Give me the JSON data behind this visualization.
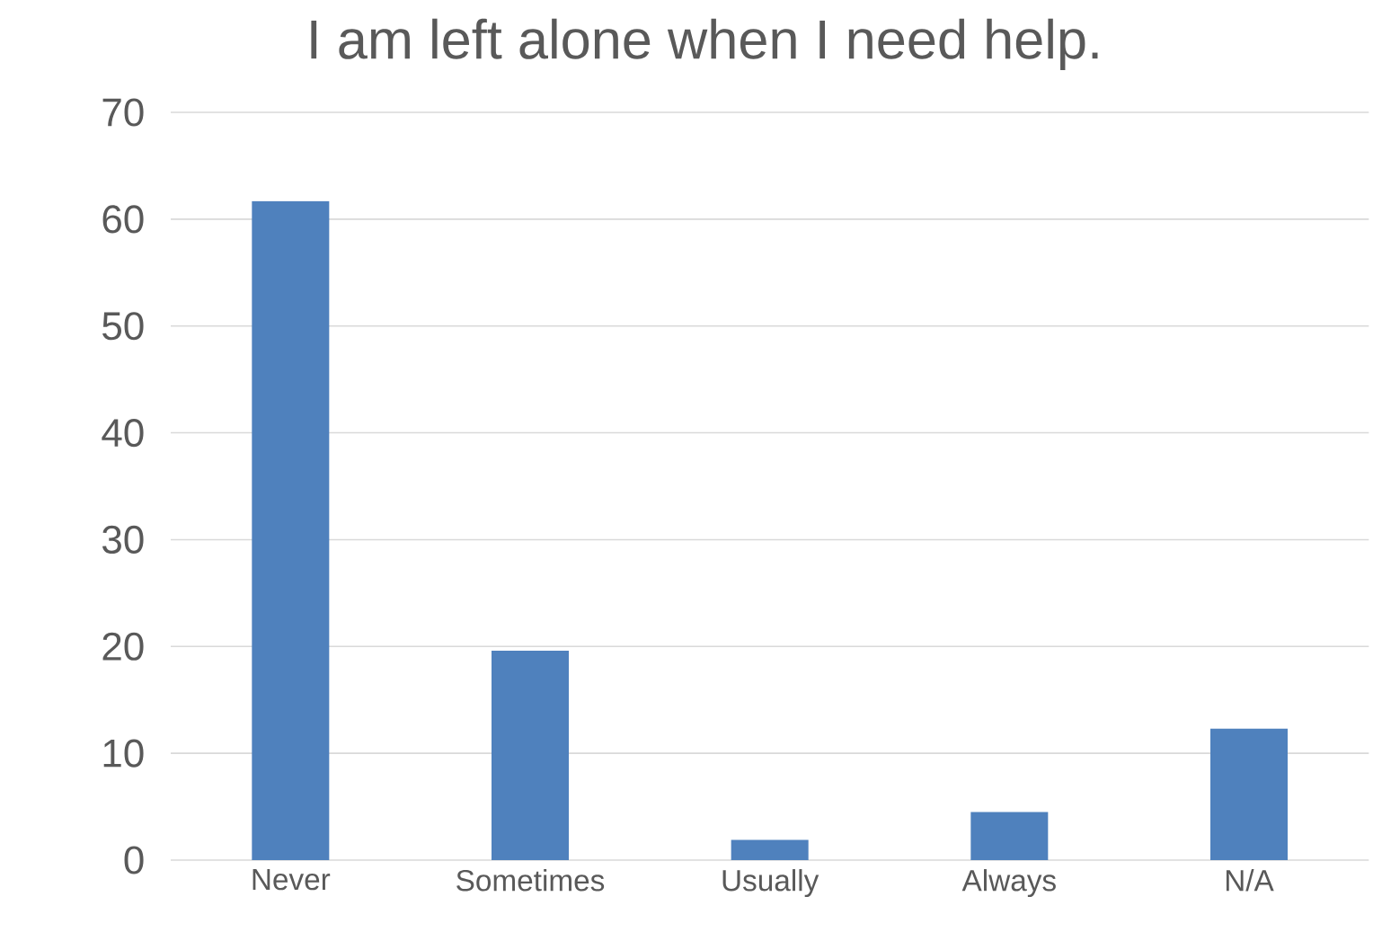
{
  "chart_data": {
    "type": "bar",
    "title": "I am left alone when I need help.",
    "categories": [
      "Never",
      "Sometimes",
      "Usually",
      "Always",
      "N/A"
    ],
    "values": [
      61.7,
      19.6,
      1.9,
      4.5,
      12.3
    ],
    "color": "#4f81bd",
    "ylim": [
      0,
      70
    ],
    "yticks": [
      0,
      10,
      20,
      30,
      40,
      50,
      60,
      70
    ],
    "grid": "y"
  }
}
